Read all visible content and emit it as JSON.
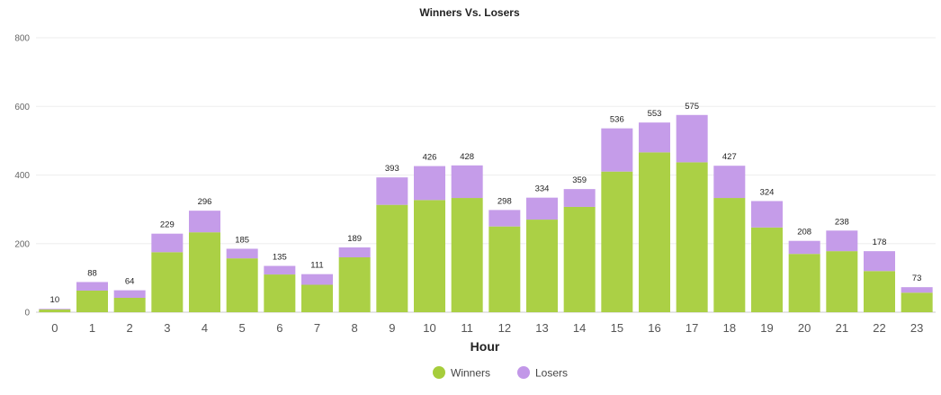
{
  "chart_data": {
    "type": "bar",
    "stacked": true,
    "title": "Winners Vs. Losers",
    "xlabel": "Hour",
    "ylabel": "",
    "ylim": [
      0,
      800
    ],
    "yticks": [
      0,
      200,
      400,
      600,
      800
    ],
    "grid": true,
    "legend_position": "bottom-center",
    "categories": [
      "0",
      "1",
      "2",
      "3",
      "4",
      "5",
      "6",
      "7",
      "8",
      "9",
      "10",
      "11",
      "12",
      "13",
      "14",
      "15",
      "16",
      "17",
      "18",
      "19",
      "20",
      "21",
      "22",
      "23"
    ],
    "series": [
      {
        "name": "Winners",
        "color": "#a6cd3b",
        "values": [
          8,
          63,
          42,
          175,
          233,
          157,
          110,
          80,
          160,
          313,
          327,
          333,
          250,
          270,
          307,
          410,
          466,
          437,
          333,
          247,
          170,
          178,
          120,
          57
        ]
      },
      {
        "name": "Losers",
        "color": "#c297e8",
        "values": [
          2,
          25,
          22,
          54,
          63,
          28,
          25,
          31,
          29,
          80,
          99,
          95,
          48,
          64,
          52,
          126,
          87,
          138,
          94,
          77,
          38,
          60,
          58,
          16
        ]
      }
    ],
    "totals": [
      10,
      88,
      64,
      229,
      296,
      185,
      135,
      111,
      189,
      393,
      426,
      428,
      298,
      334,
      359,
      536,
      553,
      575,
      427,
      324,
      208,
      238,
      178,
      73
    ]
  }
}
